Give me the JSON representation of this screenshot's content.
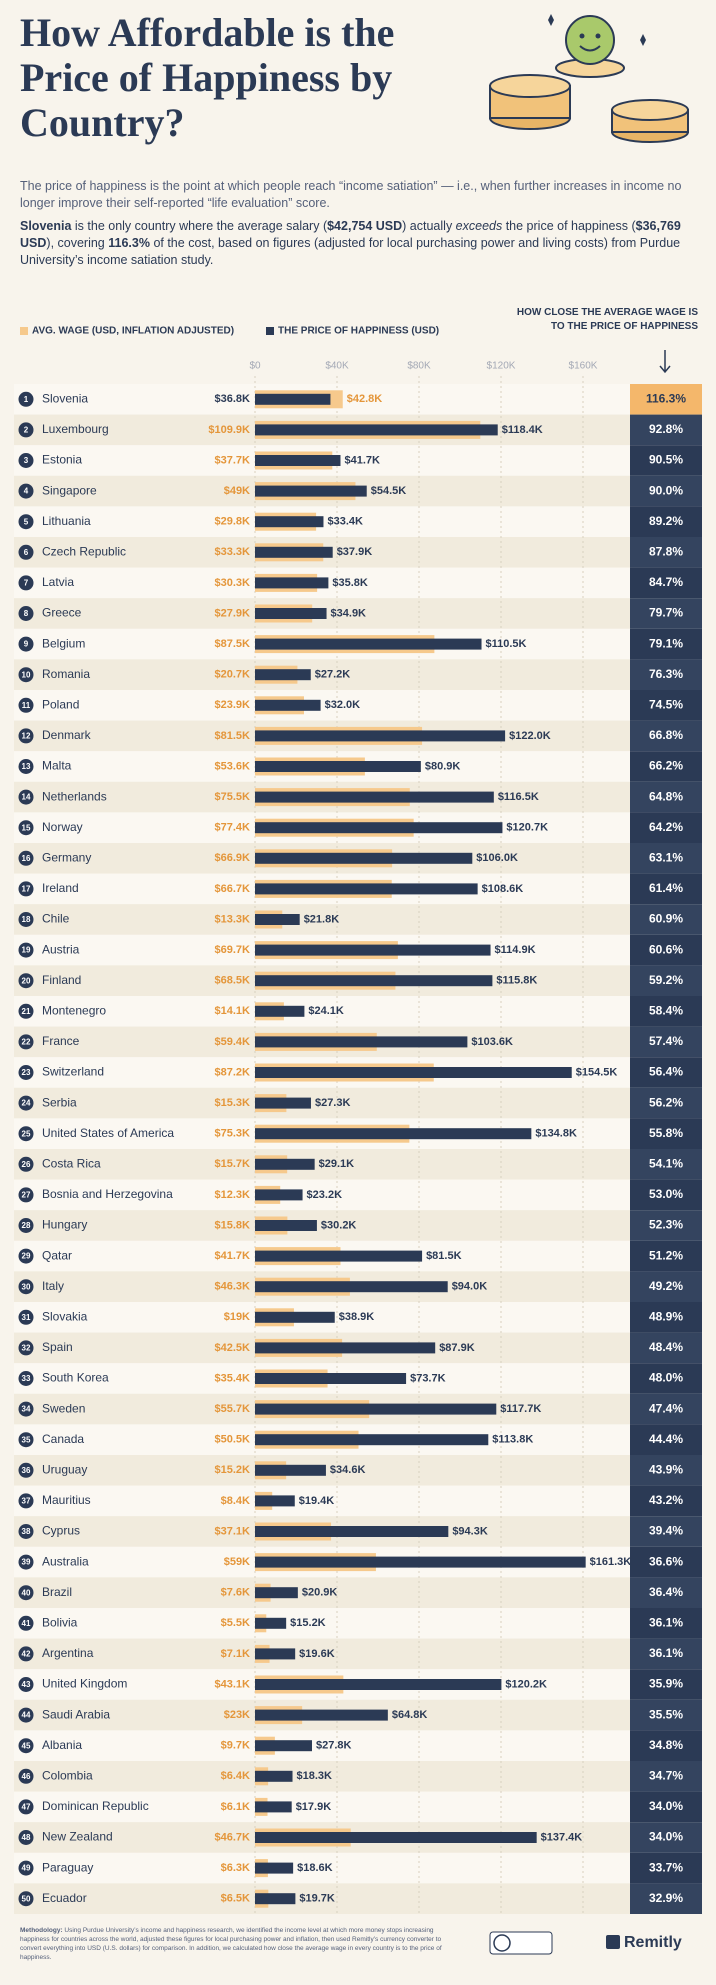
{
  "header": {
    "title": "How Affordable is the Price of Happiness by Country?",
    "intro": "The price of happiness is the point at which people reach “income satiation” — i.e., when further increases in income no longer improve their self-reported “life evaluation” score.",
    "highlight": [
      "Slovenia",
      " is the only country where the average salary (",
      "$42,754 USD",
      ") actually ",
      "exceeds",
      " the price of happiness (",
      "$36,769 USD",
      "), covering ",
      "116.3%",
      " of the cost, based on figures (adjusted for local purchasing power and living costs) from Purdue University’s income satiation study."
    ]
  },
  "chart_data": {
    "type": "bar",
    "orientation": "horizontal",
    "ranks": [
      1,
      2,
      3,
      4,
      5,
      6,
      7,
      8,
      9,
      10,
      11,
      12,
      13,
      14,
      15,
      16,
      17,
      18,
      19,
      20,
      21,
      22,
      23,
      24,
      25,
      26,
      27,
      28,
      29,
      30,
      31,
      32,
      33,
      34,
      35,
      36,
      37,
      38,
      39,
      40,
      41,
      42,
      43,
      44,
      45,
      46,
      47,
      48,
      49,
      50
    ],
    "categories": [
      "Slovenia",
      "Luxembourg",
      "Estonia",
      "Singapore",
      "Lithuania",
      "Czech Republic",
      "Latvia",
      "Greece",
      "Belgium",
      "Romania",
      "Poland",
      "Denmark",
      "Malta",
      "Netherlands",
      "Norway",
      "Germany",
      "Ireland",
      "Chile",
      "Austria",
      "Finland",
      "Montenegro",
      "France",
      "Switzerland",
      "Serbia",
      "United States of America",
      "Costa Rica",
      "Bosnia and Herzegovina",
      "Hungary",
      "Qatar",
      "Italy",
      "Slovakia",
      "Spain",
      "South Korea",
      "Sweden",
      "Canada",
      "Uruguay",
      "Mauritius",
      "Cyprus",
      "Australia",
      "Brazil",
      "Bolivia",
      "Argentina",
      "United Kingdom",
      "Saudi Arabia",
      "Albania",
      "Colombia",
      "Dominican Republic",
      "New Zealand",
      "Paraguay",
      "Ecuador"
    ],
    "series": [
      {
        "name": "AVG. WAGE (USD, INFLATION ADJUSTED)",
        "color": "#f6c98c",
        "label_color": "#e4963a",
        "values": [
          42800,
          109900,
          37700,
          49000,
          29800,
          33300,
          30300,
          27900,
          87500,
          20700,
          23900,
          81500,
          53600,
          75500,
          77400,
          66900,
          66700,
          13300,
          69700,
          68500,
          14100,
          59400,
          87200,
          15300,
          75300,
          15700,
          12300,
          15800,
          41700,
          46300,
          19000,
          42500,
          35400,
          55700,
          50500,
          15200,
          8400,
          37100,
          59000,
          7600,
          5500,
          7100,
          43100,
          23000,
          9700,
          6400,
          6100,
          46700,
          6300,
          6500
        ],
        "value_labels": [
          "$42.8K",
          "$109.9K",
          "$37.7K",
          "$49K",
          "$29.8K",
          "$33.3K",
          "$30.3K",
          "$27.9K",
          "$87.5K",
          "$20.7K",
          "$23.9K",
          "$81.5K",
          "$53.6K",
          "$75.5K",
          "$77.4K",
          "$66.9K",
          "$66.7K",
          "$13.3K",
          "$69.7K",
          "$68.5K",
          "$14.1K",
          "$59.4K",
          "$87.2K",
          "$15.3K",
          "$75.3K",
          "$15.7K",
          "$12.3K",
          "$15.8K",
          "$41.7K",
          "$46.3K",
          "$19K",
          "$42.5K",
          "$35.4K",
          "$55.7K",
          "$50.5K",
          "$15.2K",
          "$8.4K",
          "$37.1K",
          "$59K",
          "$7.6K",
          "$5.5K",
          "$7.1K",
          "$43.1K",
          "$23K",
          "$9.7K",
          "$6.4K",
          "$6.1K",
          "$46.7K",
          "$6.3K",
          "$6.5K"
        ]
      },
      {
        "name": "THE PRICE OF HAPPINESS (USD)",
        "color": "#2b3a55",
        "label_color": "#2b3a55",
        "values": [
          36800,
          118400,
          41700,
          54500,
          33400,
          37900,
          35800,
          34900,
          110500,
          27200,
          32000,
          122000,
          80900,
          116500,
          120700,
          106000,
          108600,
          21800,
          114900,
          115800,
          24100,
          103600,
          154500,
          27300,
          134800,
          29100,
          23200,
          30200,
          81500,
          94000,
          38900,
          87900,
          73700,
          117700,
          113800,
          34600,
          19400,
          94300,
          161300,
          20900,
          15200,
          19600,
          120200,
          64800,
          27800,
          18300,
          17900,
          137400,
          18600,
          19700
        ],
        "value_labels": [
          "$36.8K",
          "$118.4K",
          "$41.7K",
          "$54.5K",
          "$33.4K",
          "$37.9K",
          "$35.8K",
          "$34.9K",
          "$110.5K",
          "$27.2K",
          "$32.0K",
          "$122.0K",
          "$80.9K",
          "$116.5K",
          "$120.7K",
          "$106.0K",
          "$108.6K",
          "$21.8K",
          "$114.9K",
          "$115.8K",
          "$24.1K",
          "$103.6K",
          "$154.5K",
          "$27.3K",
          "$134.8K",
          "$29.1K",
          "$23.2K",
          "$30.2K",
          "$81.5K",
          "$94.0K",
          "$38.9K",
          "$87.9K",
          "$73.7K",
          "$117.7K",
          "$113.8K",
          "$34.6K",
          "$19.4K",
          "$94.3K",
          "$161.3K",
          "$20.9K",
          "$15.2K",
          "$19.6K",
          "$120.2K",
          "$64.8K",
          "$27.8K",
          "$18.3K",
          "$17.9K",
          "$137.4K",
          "$18.6K",
          "$19.7K"
        ]
      }
    ],
    "xlim": [
      0,
      160000
    ],
    "xticks": [
      {
        "value": 0,
        "label": "$0"
      },
      {
        "value": 40000,
        "label": "$40K"
      },
      {
        "value": 80000,
        "label": "$80K"
      },
      {
        "value": 120000,
        "label": "$120K"
      },
      {
        "value": 160000,
        "label": "$160K"
      }
    ],
    "grid": true,
    "closeness": {
      "title": "HOW CLOSE THE AVERAGE WAGE IS TO THE PRICE OF HAPPINESS",
      "values": [
        116.3,
        92.8,
        90.5,
        90,
        89.2,
        87.8,
        84.7,
        79.7,
        79.1,
        76.3,
        74.5,
        66.8,
        66.2,
        64.8,
        64.2,
        63.1,
        61.4,
        60.9,
        60.6,
        59.2,
        58.4,
        57.4,
        56.4,
        56.2,
        55.8,
        54.1,
        53,
        52.3,
        51.2,
        49.2,
        48.9,
        48.4,
        48,
        47.4,
        44.4,
        43.9,
        43.2,
        39.4,
        36.6,
        36.4,
        36.1,
        36.1,
        35.9,
        35.5,
        34.8,
        34.7,
        34,
        34,
        33.7,
        32.9
      ],
      "value_labels": [
        "116.3%",
        "92.8%",
        "90.5%",
        "90.0%",
        "89.2%",
        "87.8%",
        "84.7%",
        "79.7%",
        "79.1%",
        "76.3%",
        "74.5%",
        "66.8%",
        "66.2%",
        "64.8%",
        "64.2%",
        "63.1%",
        "61.4%",
        "60.9%",
        "60.6%",
        "59.2%",
        "58.4%",
        "57.4%",
        "56.4%",
        "56.2%",
        "55.8%",
        "54.1%",
        "53.0%",
        "52.3%",
        "51.2%",
        "49.2%",
        "48.9%",
        "48.4%",
        "48.0%",
        "47.4%",
        "44.4%",
        "43.9%",
        "43.2%",
        "39.4%",
        "36.6%",
        "36.4%",
        "36.1%",
        "36.1%",
        "35.9%",
        "35.5%",
        "34.8%",
        "34.7%",
        "34.0%",
        "34.0%",
        "33.7%",
        "32.9%"
      ]
    }
  },
  "footer": {
    "methodology_label": "Methodology:",
    "methodology": "Using Purdue University’s income and happiness research, we identified the income level at which more money stops increasing happiness for countries across the world, adjusted these figures for local purchasing power and inflation, then used Remitly’s currency converter to convert everything into USD (U.S. dollars) for comparison. In addition, we calculated how close the average wage in every country is to the price of happiness.",
    "brand": "Remitly"
  }
}
